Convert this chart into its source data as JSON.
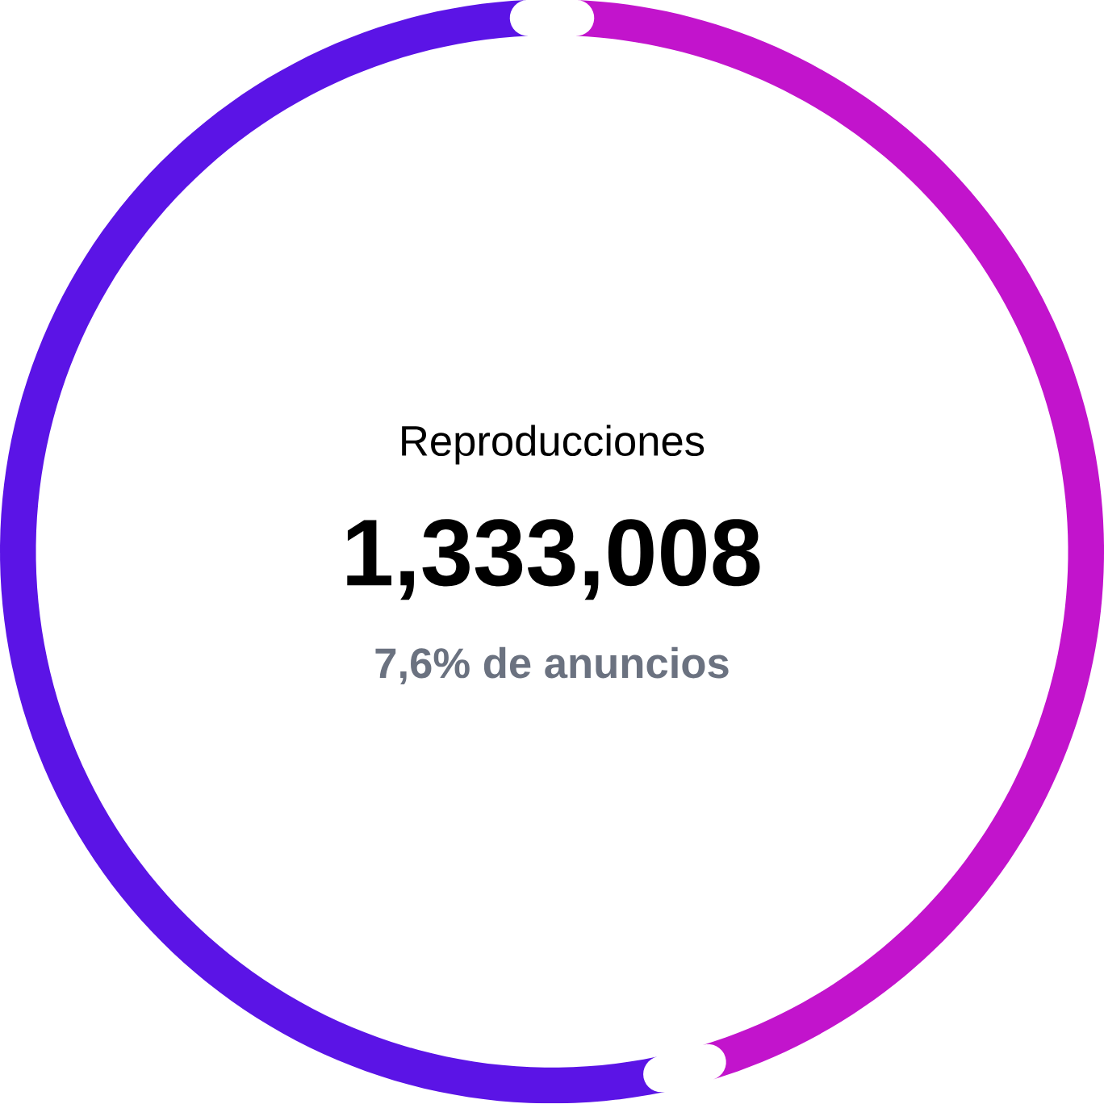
{
  "chart_data": {
    "type": "donut",
    "title": "Reproducciones",
    "subtitle": "1,333,008",
    "annotations": [
      "7,6% de anuncios"
    ],
    "categories": [
      null,
      null
    ],
    "values": [
      46,
      54
    ],
    "colors": [
      "#c214cc",
      "#5b14e6"
    ]
  }
}
